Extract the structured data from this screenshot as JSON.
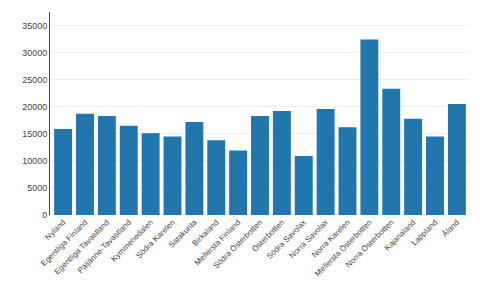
{
  "chart_data": {
    "type": "bar",
    "categories": [
      "Nyland",
      "Egentliga Finland",
      "Egentliga Tavastland",
      "Päijänne-Tavastland",
      "Kymmenedalen",
      "Södra Karelen",
      "Satakunta",
      "Birkaland",
      "Mellersta Finland",
      "Södra Österbotten",
      "Österbotten",
      "Södra Savolax",
      "Norra Savolax",
      "Norra Karelen",
      "Mellersta Österbotten",
      "Norra Österbotten",
      "Kajanaland",
      "Lappland",
      "Åland"
    ],
    "values": [
      15900,
      18700,
      18300,
      16500,
      15100,
      14500,
      17200,
      13800,
      11900,
      18300,
      19200,
      10900,
      19600,
      16200,
      32400,
      23300,
      17800,
      14500,
      20500
    ],
    "color": "#2176ae",
    "ylim": [
      0,
      37500
    ],
    "yticks": [
      0,
      5000,
      10000,
      15000,
      20000,
      25000,
      30000,
      35000
    ],
    "grid": true
  }
}
